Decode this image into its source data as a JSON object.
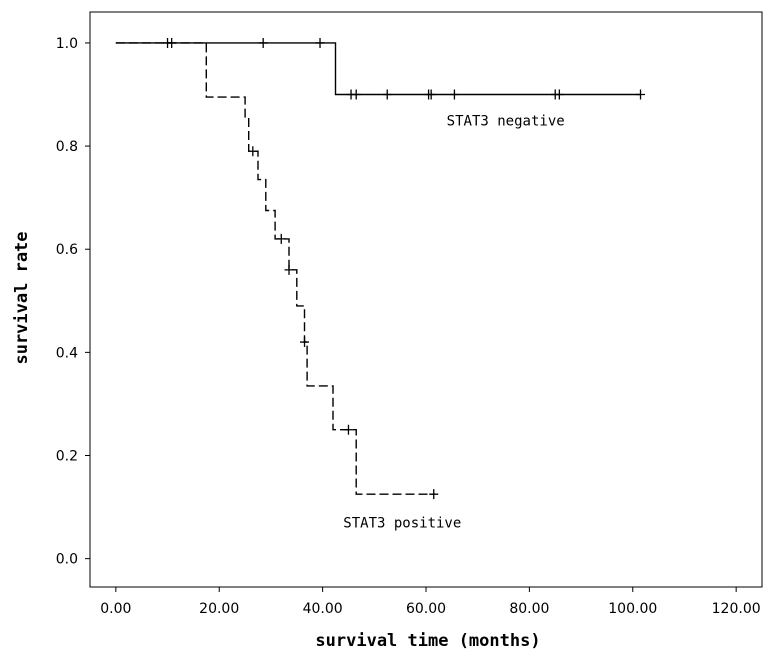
{
  "chart_data": {
    "type": "line",
    "step": true,
    "xlabel": "survival time (months)",
    "ylabel": "survival rate",
    "xlim": [
      -5,
      125
    ],
    "ylim": [
      -0.055,
      1.06
    ],
    "x_ticks": [
      0,
      20,
      40,
      60,
      80,
      100,
      120
    ],
    "x_tick_labels": [
      "0.00",
      "20.00",
      "40.00",
      "60.00",
      "80.00",
      "100.00",
      "120.00"
    ],
    "y_ticks": [
      0.0,
      0.2,
      0.4,
      0.6,
      0.8,
      1.0
    ],
    "y_tick_labels": [
      "0.0",
      "0.2",
      "0.4",
      "0.6",
      "0.8",
      "1.0"
    ],
    "grid": false,
    "legend": "none",
    "series": [
      {
        "name": "STAT3 negative",
        "line_style": "solid",
        "steps": [
          [
            0,
            1.0
          ],
          [
            42.5,
            1.0
          ],
          [
            42.5,
            0.9
          ],
          [
            101.5,
            0.9
          ]
        ],
        "censored": [
          [
            10,
            1.0
          ],
          [
            10.8,
            1.0
          ],
          [
            28.5,
            1.0
          ],
          [
            39.5,
            1.0
          ],
          [
            45.5,
            0.9
          ],
          [
            46.5,
            0.9
          ],
          [
            52.5,
            0.9
          ],
          [
            60.5,
            0.9
          ],
          [
            61.0,
            0.9
          ],
          [
            65.5,
            0.9
          ],
          [
            85.0,
            0.9
          ],
          [
            85.8,
            0.9
          ],
          [
            101.5,
            0.9
          ]
        ]
      },
      {
        "name": "STAT3 positive",
        "line_style": "dashed",
        "steps": [
          [
            0,
            1.0
          ],
          [
            17.5,
            1.0
          ],
          [
            17.5,
            0.895
          ],
          [
            25,
            0.895
          ],
          [
            25,
            0.855
          ],
          [
            25.7,
            0.855
          ],
          [
            25.7,
            0.79
          ],
          [
            27.5,
            0.79
          ],
          [
            27.5,
            0.735
          ],
          [
            29,
            0.735
          ],
          [
            29,
            0.675
          ],
          [
            30.8,
            0.675
          ],
          [
            30.8,
            0.62
          ],
          [
            33.5,
            0.62
          ],
          [
            33.5,
            0.56
          ],
          [
            35,
            0.56
          ],
          [
            35,
            0.49
          ],
          [
            36.5,
            0.49
          ],
          [
            36.5,
            0.42
          ],
          [
            37,
            0.42
          ],
          [
            37,
            0.335
          ],
          [
            42,
            0.335
          ],
          [
            42,
            0.25
          ],
          [
            46.5,
            0.25
          ],
          [
            46.5,
            0.125
          ],
          [
            61.5,
            0.125
          ]
        ],
        "censored": [
          [
            26.5,
            0.79
          ],
          [
            32,
            0.62
          ],
          [
            33.5,
            0.56
          ],
          [
            36.5,
            0.42
          ],
          [
            45,
            0.25
          ],
          [
            61.5,
            0.125
          ]
        ]
      }
    ],
    "annotations": [
      {
        "text": "STAT3 negative",
        "x": 64,
        "y": 0.84
      },
      {
        "text": "STAT3 positive",
        "x": 44,
        "y": 0.06
      }
    ]
  }
}
